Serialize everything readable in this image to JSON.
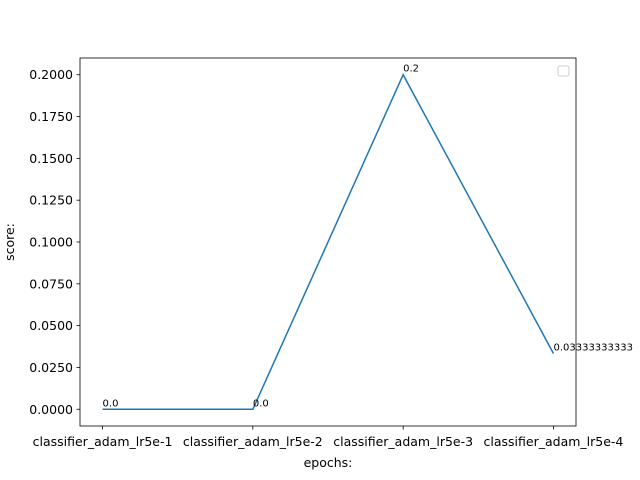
{
  "chart_data": {
    "type": "line",
    "categories": [
      "classifier_adam_lr5e-1",
      "classifier_adam_lr5e-2",
      "classifier_adam_lr5e-3",
      "classifier_adam_lr5e-4"
    ],
    "series": [
      {
        "color": "#1f77b4",
        "values": [
          0,
          0,
          0.2,
          0.03333333333333333
        ],
        "value_labels": [
          "0.0",
          "0.0",
          "0.2",
          "0.03333333333"
        ]
      }
    ],
    "xlabel": "epochs:",
    "ylabel": "score:",
    "ylim": [
      -0.01,
      0.21
    ],
    "yticks": [
      {
        "value": 0,
        "label": "0.0000"
      },
      {
        "value": 0.025,
        "label": "0.0250"
      },
      {
        "value": 0.05,
        "label": "0.0500"
      },
      {
        "value": 0.075,
        "label": "0.0750"
      },
      {
        "value": 0.1,
        "label": "0.1000"
      },
      {
        "value": 0.125,
        "label": "0.1250"
      },
      {
        "value": 0.15,
        "label": "0.1500"
      },
      {
        "value": 0.175,
        "label": "0.1750"
      },
      {
        "value": 0.2,
        "label": "0.2000"
      }
    ],
    "grid": false
  }
}
